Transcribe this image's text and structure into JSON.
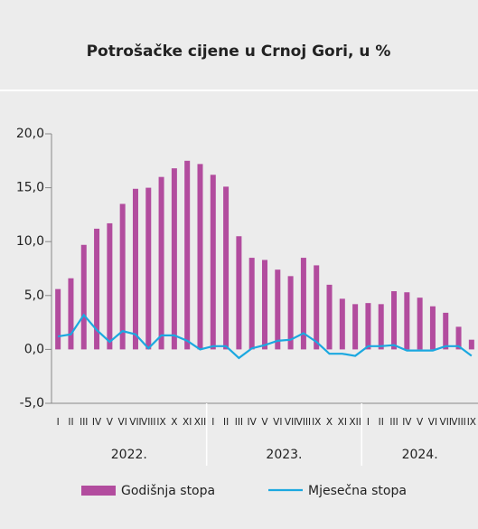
{
  "chart_data": {
    "type": "bar_line",
    "title": "Potrošačke cijene u Crnoj Gori, u %",
    "categories": [
      "I",
      "II",
      "III",
      "IV",
      "V",
      "VI",
      "VII",
      "VIII",
      "IX",
      "X",
      "XI",
      "XII",
      "I",
      "II",
      "III",
      "IV",
      "V",
      "VI",
      "VII",
      "VIII",
      "IX",
      "X",
      "XI",
      "XII",
      "I",
      "II",
      "III",
      "IV",
      "V",
      "VI",
      "VII",
      "VIII",
      "IX"
    ],
    "x_groups": [
      "2022.",
      "2023.",
      "2024."
    ],
    "series": [
      {
        "name": "Godišnja stopa",
        "type": "bar",
        "color": "#b24c9e",
        "values": [
          5.6,
          6.6,
          9.7,
          11.2,
          11.7,
          13.5,
          14.9,
          15.0,
          16.0,
          16.8,
          17.5,
          17.2,
          16.2,
          15.1,
          10.5,
          8.5,
          8.3,
          7.4,
          6.8,
          8.5,
          7.8,
          6.0,
          4.7,
          4.2,
          4.3,
          4.2,
          5.4,
          5.3,
          4.8,
          4.0,
          3.4,
          2.1,
          0.9
        ]
      },
      {
        "name": "Mjesečna stopa",
        "type": "line",
        "color": "#1ba8e0",
        "values": [
          1.2,
          1.4,
          3.2,
          1.8,
          0.7,
          1.7,
          1.4,
          0.1,
          1.3,
          1.3,
          0.8,
          0.0,
          0.3,
          0.3,
          -0.8,
          0.1,
          0.4,
          0.8,
          0.9,
          1.5,
          0.7,
          -0.4,
          -0.4,
          -0.6,
          0.3,
          0.3,
          0.4,
          -0.1,
          -0.1,
          -0.1,
          0.3,
          0.3,
          -0.6
        ]
      }
    ],
    "ylim": [
      -5,
      20
    ],
    "yticks": [
      {
        "value": -5,
        "label": "-5,0"
      },
      {
        "value": 0,
        "label": "0,0"
      },
      {
        "value": 5,
        "label": "5,0"
      },
      {
        "value": 10,
        "label": "10,0"
      },
      {
        "value": 15,
        "label": "15,0"
      },
      {
        "value": 20,
        "label": "20,0"
      }
    ],
    "grid": false
  }
}
